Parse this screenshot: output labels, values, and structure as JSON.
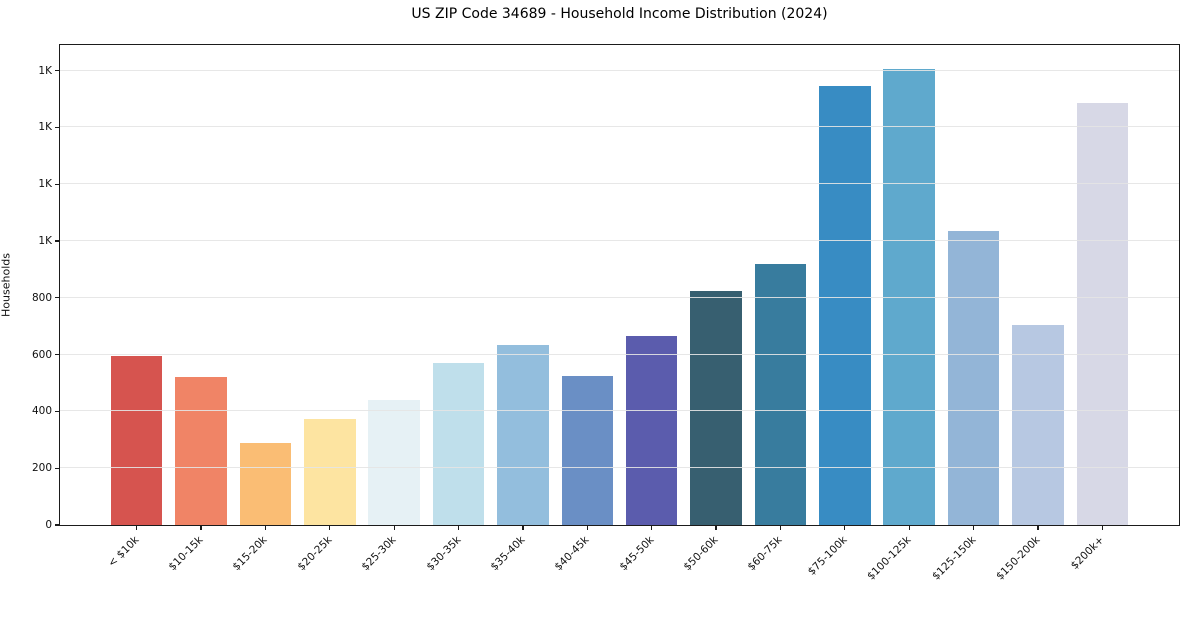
{
  "chart_data": {
    "type": "bar",
    "title": "US ZIP Code 34689 - Household Income Distribution (2024)",
    "xlabel": "",
    "ylabel": "Households",
    "categories": [
      "< $10k",
      "$10-15k",
      "$15-20k",
      "$20-25k",
      "$25-30k",
      "$30-35k",
      "$35-40k",
      "$40-45k",
      "$45-50k",
      "$50-60k",
      "$60-75k",
      "$75-100k",
      "$100-125k",
      "$125-150k",
      "$150-200k",
      "$200k+"
    ],
    "values": [
      595,
      520,
      290,
      375,
      440,
      570,
      635,
      525,
      665,
      825,
      920,
      1545,
      1605,
      1035,
      705,
      1485
    ],
    "bar_colors": [
      "#d6544f",
      "#f08466",
      "#fabd74",
      "#fde4a1",
      "#e6f1f5",
      "#bfdfeb",
      "#93bedd",
      "#6a8fc5",
      "#5b5cad",
      "#375f70",
      "#387c9e",
      "#388cc3",
      "#5fa9cd",
      "#93b5d7",
      "#b7c8e2",
      "#d7d8e6"
    ],
    "ylim": [
      0,
      1690
    ],
    "yticks": [
      {
        "value": 0,
        "label": "0"
      },
      {
        "value": 200,
        "label": "200"
      },
      {
        "value": 400,
        "label": "400"
      },
      {
        "value": 600,
        "label": "600"
      },
      {
        "value": 800,
        "label": "800"
      },
      {
        "value": 1000,
        "label": "1K"
      },
      {
        "value": 1200,
        "label": "1K"
      },
      {
        "value": 1400,
        "label": "1K"
      },
      {
        "value": 1600,
        "label": "1K"
      }
    ],
    "grid": "horizontal-on-top",
    "legend": "none",
    "background_color": "#ffffff",
    "spine_color": "#1b1b1b"
  }
}
